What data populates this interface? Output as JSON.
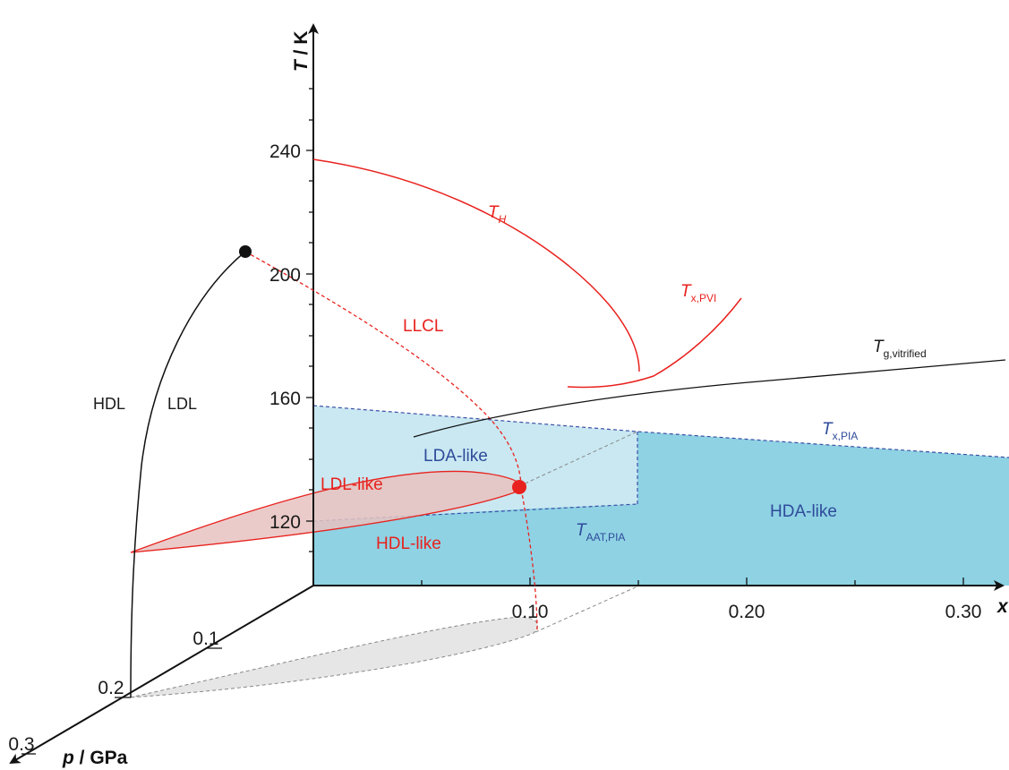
{
  "axes": {
    "t_axis": {
      "title_main": "T",
      "title_unit": " / K",
      "ticks": [
        "240",
        "200",
        "160",
        "120"
      ]
    },
    "x_axis": {
      "title": "x",
      "ticks": [
        "0.10",
        "0.20",
        "0.30"
      ]
    },
    "p_axis": {
      "title_main": "p",
      "title_unit": " / GPa",
      "ticks": [
        "0.1",
        "0.2",
        "0.3"
      ]
    }
  },
  "labels": {
    "hdl": "HDL",
    "ldl": "LDL",
    "llcl": "LLCL",
    "th_main": "T",
    "th_sub": "H",
    "txpvi_main": "T",
    "txpvi_sub": "x,PVI",
    "tgv_main": "T",
    "tgv_sub": "g,vitrified",
    "txpia_main": "T",
    "txpia_sub": "x,PIA",
    "taat_main": "T",
    "taat_sub": "AAT,PIA",
    "lda_like": "LDA-like",
    "hda_like": "HDA-like",
    "ldl_like": "LDL-like",
    "hdl_like": "HDL-like"
  },
  "colors": {
    "red": "#e8221e",
    "blue_text": "#2f4b9a",
    "light_blue": "#c9e8f2",
    "mid_blue": "#8ed2e4",
    "pink_fill": "#e7c2c0",
    "gray_fill": "#e6e6e6",
    "black": "#1a1a1a"
  }
}
